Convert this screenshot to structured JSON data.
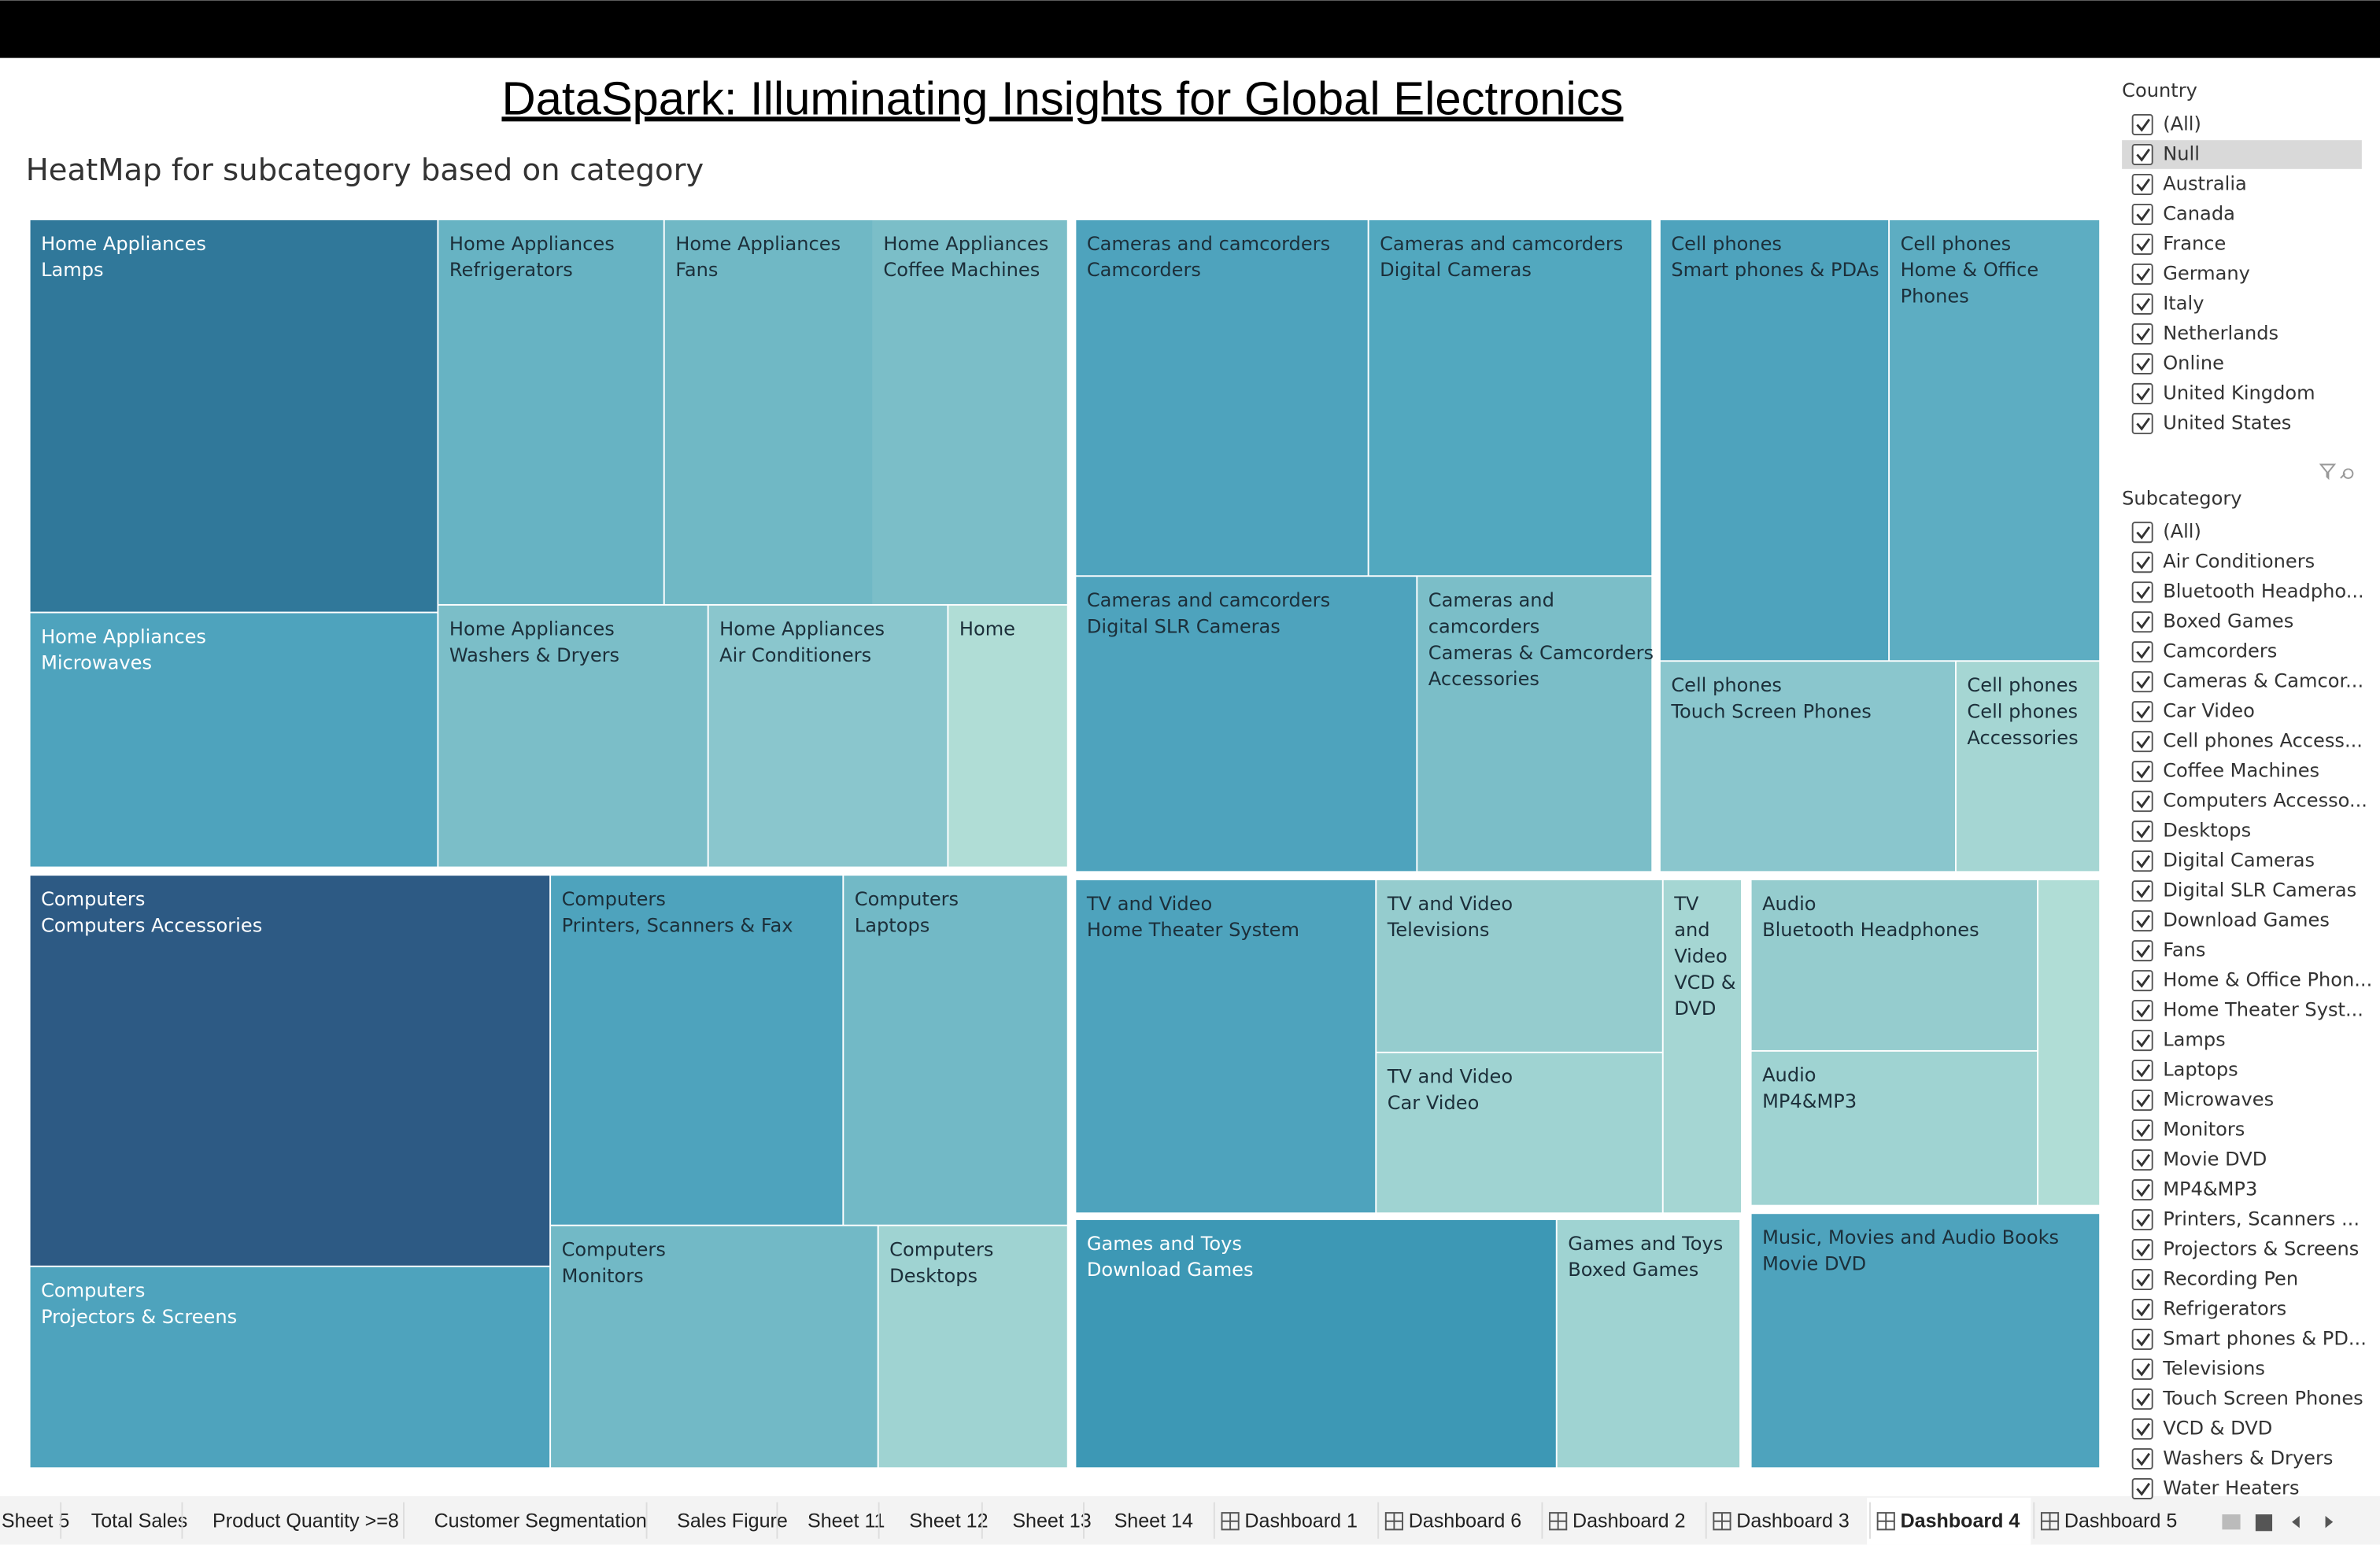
{
  "header": {
    "title": "DataSpark: Illuminating Insights for Global Electronics",
    "subtitle": "HeatMap for subcategory based on category"
  },
  "treemap": {
    "tiles": [
      {
        "lines": [
          "Home Appliances",
          "Lamps"
        ]
      },
      {
        "lines": [
          "Home Appliances",
          "Refrigerators"
        ]
      },
      {
        "lines": [
          "Home Appliances",
          "Fans"
        ]
      },
      {
        "lines": [
          "Home Appliances",
          "Coffee Machines"
        ]
      },
      {
        "lines": [
          "Home Appliances",
          "Microwaves"
        ]
      },
      {
        "lines": [
          "Home Appliances",
          "Washers & Dryers"
        ]
      },
      {
        "lines": [
          "Home Appliances",
          "Air Conditioners"
        ]
      },
      {
        "lines": [
          "Home"
        ]
      },
      {
        "lines": [
          "Cameras and camcorders",
          "Camcorders"
        ]
      },
      {
        "lines": [
          "Cameras and camcorders",
          "Digital Cameras"
        ]
      },
      {
        "lines": [
          "Cameras and camcorders",
          "Digital SLR Cameras"
        ]
      },
      {
        "lines": [
          "Cameras and",
          "camcorders",
          "Cameras & Camcorders",
          "Accessories"
        ]
      },
      {
        "lines": [
          "Cell phones",
          "Smart phones & PDAs"
        ]
      },
      {
        "lines": [
          "Cell phones",
          "Home & Office",
          "Phones"
        ]
      },
      {
        "lines": [
          "Cell phones",
          "Touch Screen Phones"
        ]
      },
      {
        "lines": [
          "Cell phones",
          "Cell phones",
          "Accessories"
        ]
      },
      {
        "lines": [
          "Computers",
          "Computers Accessories"
        ]
      },
      {
        "lines": [
          "Computers",
          "Printers, Scanners & Fax"
        ]
      },
      {
        "lines": [
          "Computers",
          "Laptops"
        ]
      },
      {
        "lines": [
          "Computers",
          "Projectors & Screens"
        ]
      },
      {
        "lines": [
          "Computers",
          "Monitors"
        ]
      },
      {
        "lines": [
          "Computers",
          "Desktops"
        ]
      },
      {
        "lines": [
          "TV and Video",
          "Home Theater System"
        ]
      },
      {
        "lines": [
          "TV and Video",
          "Televisions"
        ]
      },
      {
        "lines": [
          "TV and Video",
          "Car Video"
        ]
      },
      {
        "lines": [
          "TV",
          "and",
          "Video",
          "VCD &",
          "DVD"
        ]
      },
      {
        "lines": [
          "Audio",
          "Bluetooth Headphones"
        ]
      },
      {
        "lines": [
          "Audio",
          "MP4&MP3"
        ]
      },
      {
        "lines": [
          "Games and Toys",
          "Download Games"
        ]
      },
      {
        "lines": [
          "Games and Toys",
          "Boxed Games"
        ]
      },
      {
        "lines": [
          "Music, Movies and Audio Books",
          "Movie DVD"
        ]
      }
    ]
  },
  "filters": [
    {
      "title": "Country",
      "items": [
        {
          "label": "(All)",
          "checked": true
        },
        {
          "label": "Null",
          "checked": true,
          "highlighted": true
        },
        {
          "label": "Australia",
          "checked": true
        },
        {
          "label": "Canada",
          "checked": true
        },
        {
          "label": "France",
          "checked": true
        },
        {
          "label": "Germany",
          "checked": true
        },
        {
          "label": "Italy",
          "checked": true
        },
        {
          "label": "Netherlands",
          "checked": true
        },
        {
          "label": "Online",
          "checked": true
        },
        {
          "label": "United Kingdom",
          "checked": true
        },
        {
          "label": "United States",
          "checked": true
        }
      ]
    },
    {
      "title": "Subcategory",
      "items": [
        {
          "label": "(All)",
          "checked": true
        },
        {
          "label": "Air Conditioners",
          "checked": true
        },
        {
          "label": "Bluetooth Headpho...",
          "checked": true
        },
        {
          "label": "Boxed Games",
          "checked": true
        },
        {
          "label": "Camcorders",
          "checked": true
        },
        {
          "label": "Cameras & Camcor...",
          "checked": true
        },
        {
          "label": "Car Video",
          "checked": true
        },
        {
          "label": "Cell phones Access...",
          "checked": true
        },
        {
          "label": "Coffee Machines",
          "checked": true
        },
        {
          "label": "Computers Accesso...",
          "checked": true
        },
        {
          "label": "Desktops",
          "checked": true
        },
        {
          "label": "Digital Cameras",
          "checked": true
        },
        {
          "label": "Digital SLR Cameras",
          "checked": true
        },
        {
          "label": "Download Games",
          "checked": true
        },
        {
          "label": "Fans",
          "checked": true
        },
        {
          "label": "Home & Office Phon...",
          "checked": true
        },
        {
          "label": "Home Theater Syst...",
          "checked": true
        },
        {
          "label": "Lamps",
          "checked": true
        },
        {
          "label": "Laptops",
          "checked": true
        },
        {
          "label": "Microwaves",
          "checked": true
        },
        {
          "label": "Monitors",
          "checked": true
        },
        {
          "label": "Movie DVD",
          "checked": true
        },
        {
          "label": "MP4&MP3",
          "checked": true
        },
        {
          "label": "Printers, Scanners ...",
          "checked": true
        },
        {
          "label": "Projectors & Screens",
          "checked": true
        },
        {
          "label": "Recording Pen",
          "checked": true
        },
        {
          "label": "Refrigerators",
          "checked": true
        },
        {
          "label": "Smart phones & PD...",
          "checked": true
        },
        {
          "label": "Televisions",
          "checked": true
        },
        {
          "label": "Touch Screen Phones",
          "checked": true
        },
        {
          "label": "VCD & DVD",
          "checked": true
        },
        {
          "label": "Washers & Dryers",
          "checked": true
        },
        {
          "label": "Water Heaters",
          "checked": true
        }
      ]
    }
  ],
  "tabs": [
    {
      "label": "Sheet 5"
    },
    {
      "label": "Total Sales"
    },
    {
      "label": "Product Quantity >=8"
    },
    {
      "label": "Customer Segmentation"
    },
    {
      "label": "Sales Figure"
    },
    {
      "label": "Sheet 11"
    },
    {
      "label": "Sheet 12"
    },
    {
      "label": "Sheet 13"
    },
    {
      "label": "Sheet 14"
    },
    {
      "label": "Dashboard 1",
      "dashboard": true
    },
    {
      "label": "Dashboard 6",
      "dashboard": true
    },
    {
      "label": "Dashboard 2",
      "dashboard": true
    },
    {
      "label": "Dashboard 3",
      "dashboard": true
    },
    {
      "label": "Dashboard 4",
      "dashboard": true,
      "selected": true
    },
    {
      "label": "Dashboard 5",
      "dashboard": true
    }
  ]
}
